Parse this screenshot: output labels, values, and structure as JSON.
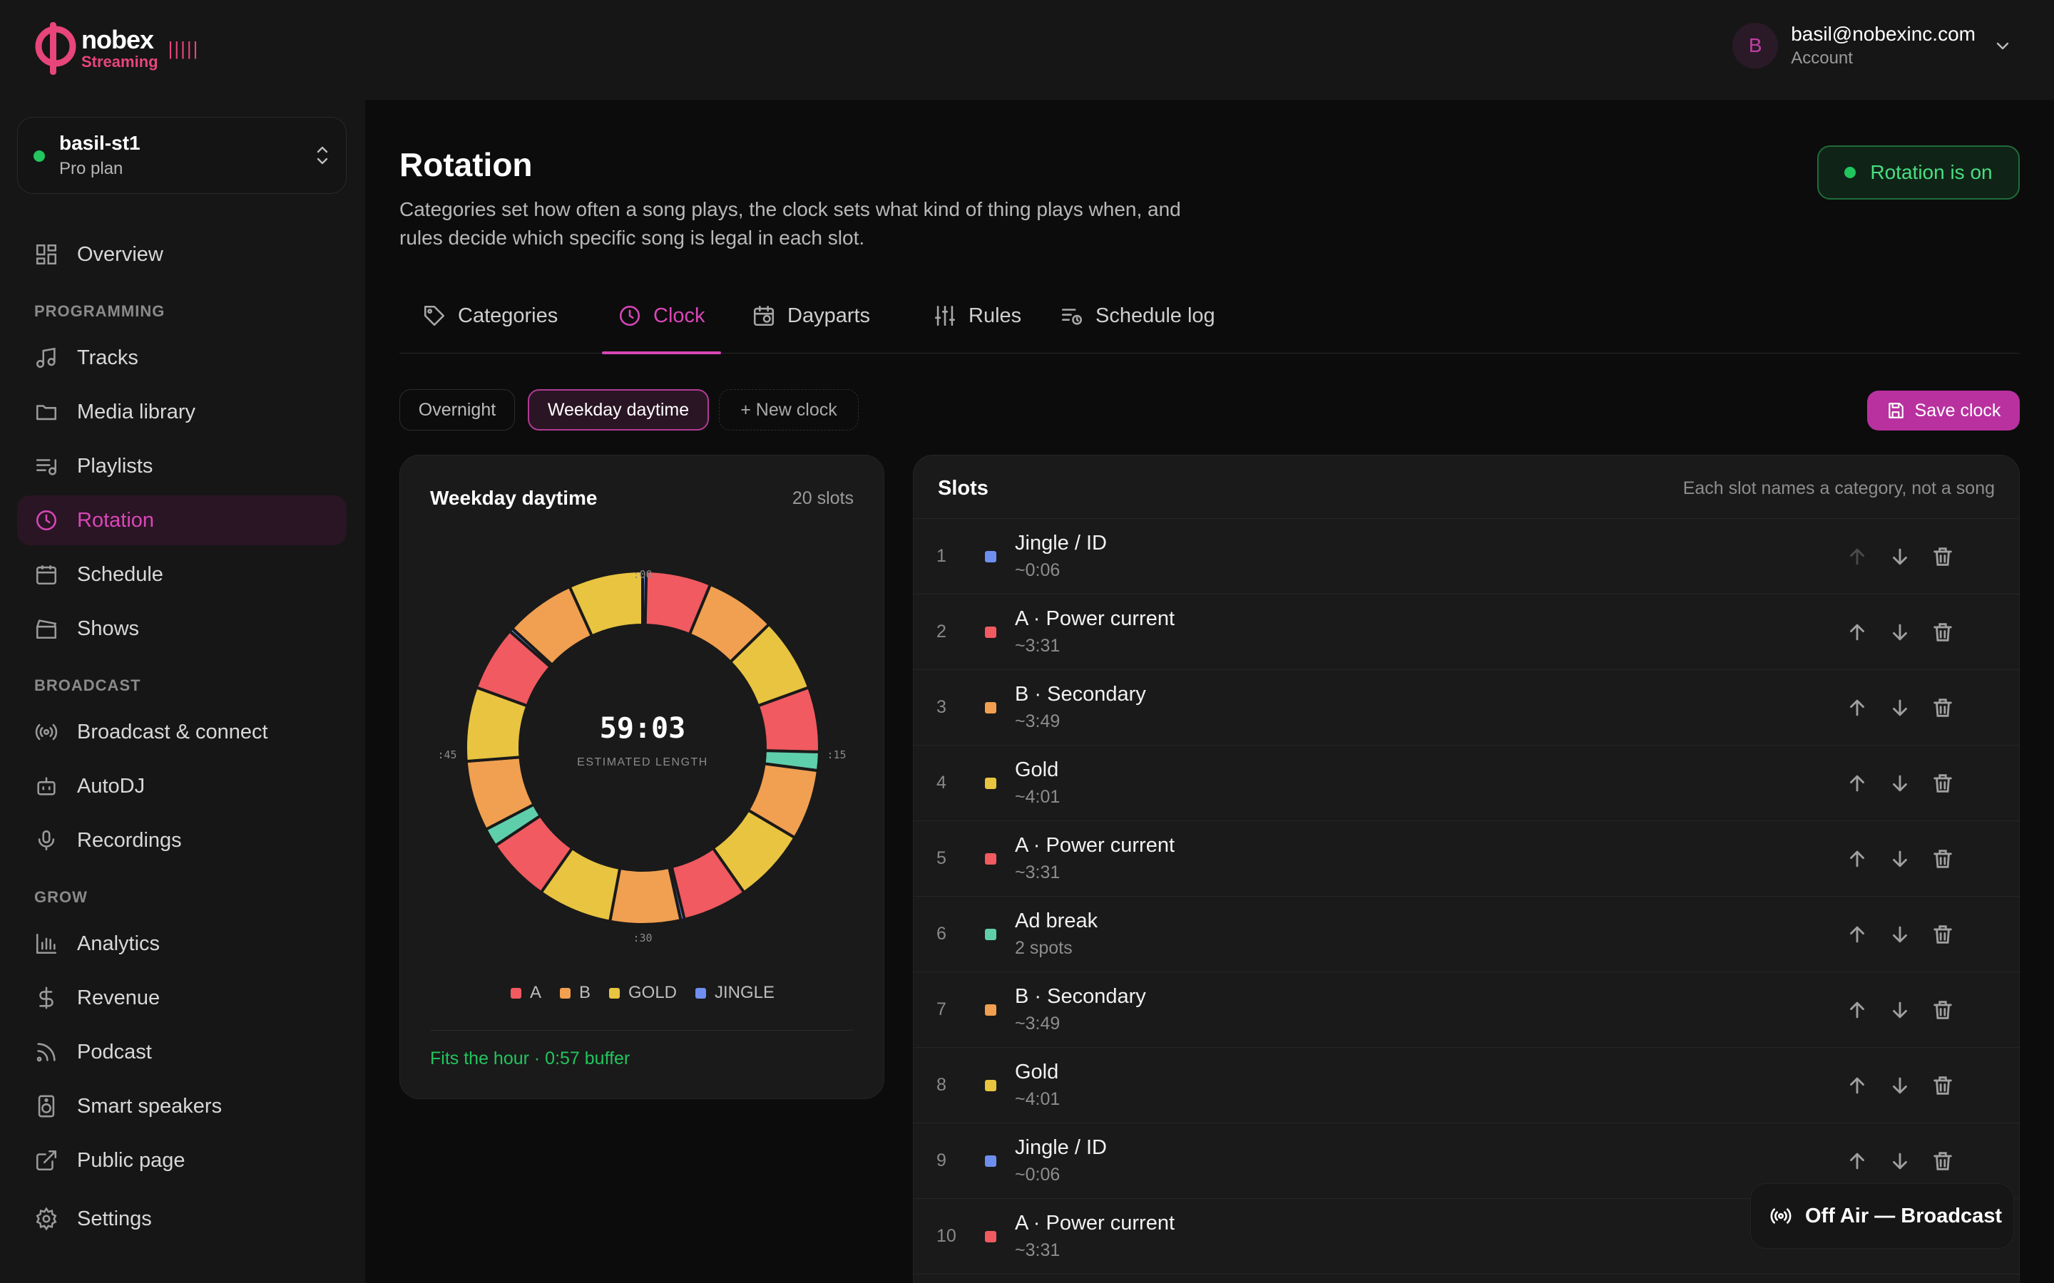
{
  "brand": {
    "name": "nobex",
    "sub": "Streaming",
    "bars": "|||||"
  },
  "account": {
    "initial": "B",
    "email": "basil@nobexinc.com",
    "role": "Account"
  },
  "station": {
    "name": "basil-st1",
    "plan": "Pro plan"
  },
  "sidebar": {
    "overview": "Overview",
    "sections": {
      "programming": "PROGRAMMING",
      "broadcast": "BROADCAST",
      "grow": "GROW"
    },
    "items": [
      {
        "label": "Tracks"
      },
      {
        "label": "Media library"
      },
      {
        "label": "Playlists"
      },
      {
        "label": "Rotation"
      },
      {
        "label": "Schedule"
      },
      {
        "label": "Shows"
      },
      {
        "label": "Broadcast & connect"
      },
      {
        "label": "AutoDJ"
      },
      {
        "label": "Recordings"
      },
      {
        "label": "Analytics"
      },
      {
        "label": "Revenue"
      },
      {
        "label": "Podcast"
      },
      {
        "label": "Smart speakers"
      },
      {
        "label": "Public page"
      }
    ],
    "settings": "Settings"
  },
  "page": {
    "title": "Rotation",
    "description": "Categories set how often a song plays, the clock sets what kind of thing plays when, and rules decide which specific song is legal in each slot.",
    "status": "Rotation is on"
  },
  "tabs": [
    {
      "label": "Categories"
    },
    {
      "label": "Clock"
    },
    {
      "label": "Dayparts"
    },
    {
      "label": "Rules"
    },
    {
      "label": "Schedule log"
    }
  ],
  "clocks": {
    "overnight": "Overnight",
    "weekday": "Weekday daytime",
    "new": "+ New clock",
    "save": "Save clock"
  },
  "clock_card": {
    "title": "Weekday daytime",
    "count": "20 slots",
    "length": "59:03",
    "length_label": "ESTIMATED LENGTH",
    "ticks": {
      "top": ":00",
      "right": ":15",
      "bottom": ":30",
      "left": ":45"
    },
    "fit": "Fits the hour · 0:57 buffer"
  },
  "legend": [
    {
      "label": "A",
      "color": "#f05a60"
    },
    {
      "label": "B",
      "color": "#f0a050"
    },
    {
      "label": "GOLD",
      "color": "#e8c440"
    },
    {
      "label": "JINGLE",
      "color": "#6f8ff0"
    }
  ],
  "colors": {
    "accent": "#d946b8",
    "A": "#f05a60",
    "B": "#f0a050",
    "gold": "#e8c440",
    "jingle": "#6f8ff0",
    "ad": "#5ecfaa"
  },
  "slots_card": {
    "title": "Slots",
    "hint": "Each slot names a category, not a song"
  },
  "slots": [
    {
      "num": "1",
      "name": "Jingle / ID",
      "len": "~0:06",
      "color": "#6f8ff0"
    },
    {
      "num": "2",
      "name": "A · Power current",
      "len": "~3:31",
      "color": "#f05a60"
    },
    {
      "num": "3",
      "name": "B · Secondary",
      "len": "~3:49",
      "color": "#f0a050"
    },
    {
      "num": "4",
      "name": "Gold",
      "len": "~4:01",
      "color": "#e8c440"
    },
    {
      "num": "5",
      "name": "A · Power current",
      "len": "~3:31",
      "color": "#f05a60"
    },
    {
      "num": "6",
      "name": "Ad break",
      "len": "2 spots",
      "color": "#5ecfaa"
    },
    {
      "num": "7",
      "name": "B · Secondary",
      "len": "~3:49",
      "color": "#f0a050"
    },
    {
      "num": "8",
      "name": "Gold",
      "len": "~4:01",
      "color": "#e8c440"
    },
    {
      "num": "9",
      "name": "Jingle / ID",
      "len": "~0:06",
      "color": "#6f8ff0"
    },
    {
      "num": "10",
      "name": "A · Power current",
      "len": "~3:31",
      "color": "#f05a60"
    }
  ],
  "off_air": "Off Air — Broadcast"
}
